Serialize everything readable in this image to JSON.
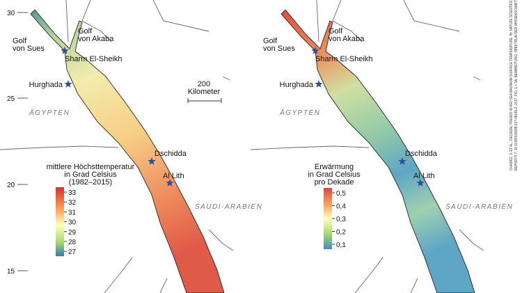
{
  "left_map": {
    "latitude_labels": [
      "30",
      "25",
      "20",
      "15"
    ],
    "places": {
      "golf_sues": [
        "Golf",
        "von Sues"
      ],
      "golf_akaba": [
        "Golf",
        "von Akaba"
      ],
      "sharm": "Sharm El-Sheikh",
      "hurghada": "Hurghada",
      "egypt": "ÄGYPTEN",
      "dschidda": "Dschidda",
      "al_lith": "Al Lith",
      "saudi": "SAUDI-ARABIEN"
    },
    "scale": [
      "200",
      "Kilometer"
    ],
    "legend": {
      "title": [
        "mittlere Höchsttemperatur",
        "in Grad Celsius",
        "(1982–2015)"
      ],
      "ticks": [
        "33",
        "32",
        "31",
        "30",
        "29",
        "28",
        "27"
      ]
    }
  },
  "right_map": {
    "places": {
      "golf_sues": [
        "Golf",
        "von Sues"
      ],
      "golf_akaba": [
        "Golf",
        "von Akaba"
      ],
      "sharm": "Sharm El-Sheikh",
      "hurghada": "Hurghada",
      "egypt": "ÄGYPTEN",
      "dschidda": "Dschidda",
      "al_lith": "Al Lith",
      "saudi": "SAUDI-ARABIEN"
    },
    "legend": {
      "title": [
        "Erwärmung",
        "in Grad Celsius",
        "pro Dekade"
      ],
      "ticks": [
        "0,5",
        "0,4",
        "0,3",
        "0,2",
        "0,1"
      ]
    }
  },
  "credit": [
    "CHAIDEZ, V. ET AL.: DECADAL TRENDS IN RED SEA MAXIMUM SURFACE TEMPERATURE. IN: NATURE SCIENTIFIC",
    "REPORTS 7, 10.1038/S41598-017-08146-Z, 2017, FIG. 1 + 3A; BEARBEITUNG: SPEKTRUM DER WISSENSCHAFT"
  ]
}
